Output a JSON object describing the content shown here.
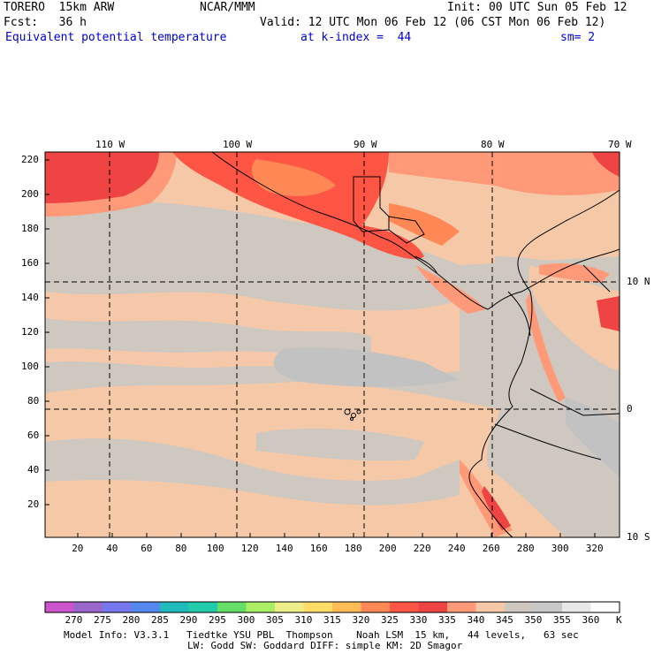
{
  "header": {
    "model": "TORERO  15km ARW",
    "center": "NCAR/MMM",
    "init": "Init: 00 UTC Sun 05 Feb 12",
    "fcst": "Fcst:   36 h",
    "valid": "Valid: 12 UTC Mon 06 Feb 12 (06 CST Mon 06 Feb 12)",
    "field": "Equivalent potential temperature",
    "level": "at k-index =  44",
    "smooth": "sm= 2"
  },
  "axes": {
    "top_lon_labels": [
      "110 W",
      "100 W",
      "90 W",
      "80 W",
      "70 W"
    ],
    "right_lat_labels": [
      "10 N",
      "0",
      "10 S"
    ],
    "left_y_ticks": [
      "220",
      "200",
      "180",
      "160",
      "140",
      "120",
      "100",
      "80",
      "60",
      "40",
      "20"
    ],
    "bottom_x_ticks": [
      "20",
      "40",
      "60",
      "80",
      "100",
      "120",
      "140",
      "160",
      "180",
      "200",
      "220",
      "240",
      "260",
      "280",
      "300",
      "320"
    ]
  },
  "colorbar": {
    "labels": [
      "270",
      "275",
      "280",
      "285",
      "290",
      "295",
      "300",
      "305",
      "310",
      "315",
      "320",
      "325",
      "330",
      "335",
      "340",
      "345",
      "350",
      "355",
      "360"
    ],
    "unit": "K",
    "colors": [
      "#cc55cc",
      "#9966cc",
      "#7777ee",
      "#5588ee",
      "#22bbbb",
      "#22ccaa",
      "#66dd66",
      "#aaee66",
      "#eeee88",
      "#ffdd66",
      "#ffbb55",
      "#ff8855",
      "#ff5544",
      "#ee4444",
      "#ff9977",
      "#f5c8a8",
      "#cfc8c0",
      "#c8c8c8",
      "#e8e8e8",
      "#ffffff"
    ]
  },
  "footer": {
    "line1": "Model Info: V3.3.1   Tiedtke YSU PBL  Thompson    Noah LSM  15 km,   44 levels,   63 sec",
    "line2": "LW: Godd SW: Goddard DIFF: simple KM: 2D Smagor"
  }
}
